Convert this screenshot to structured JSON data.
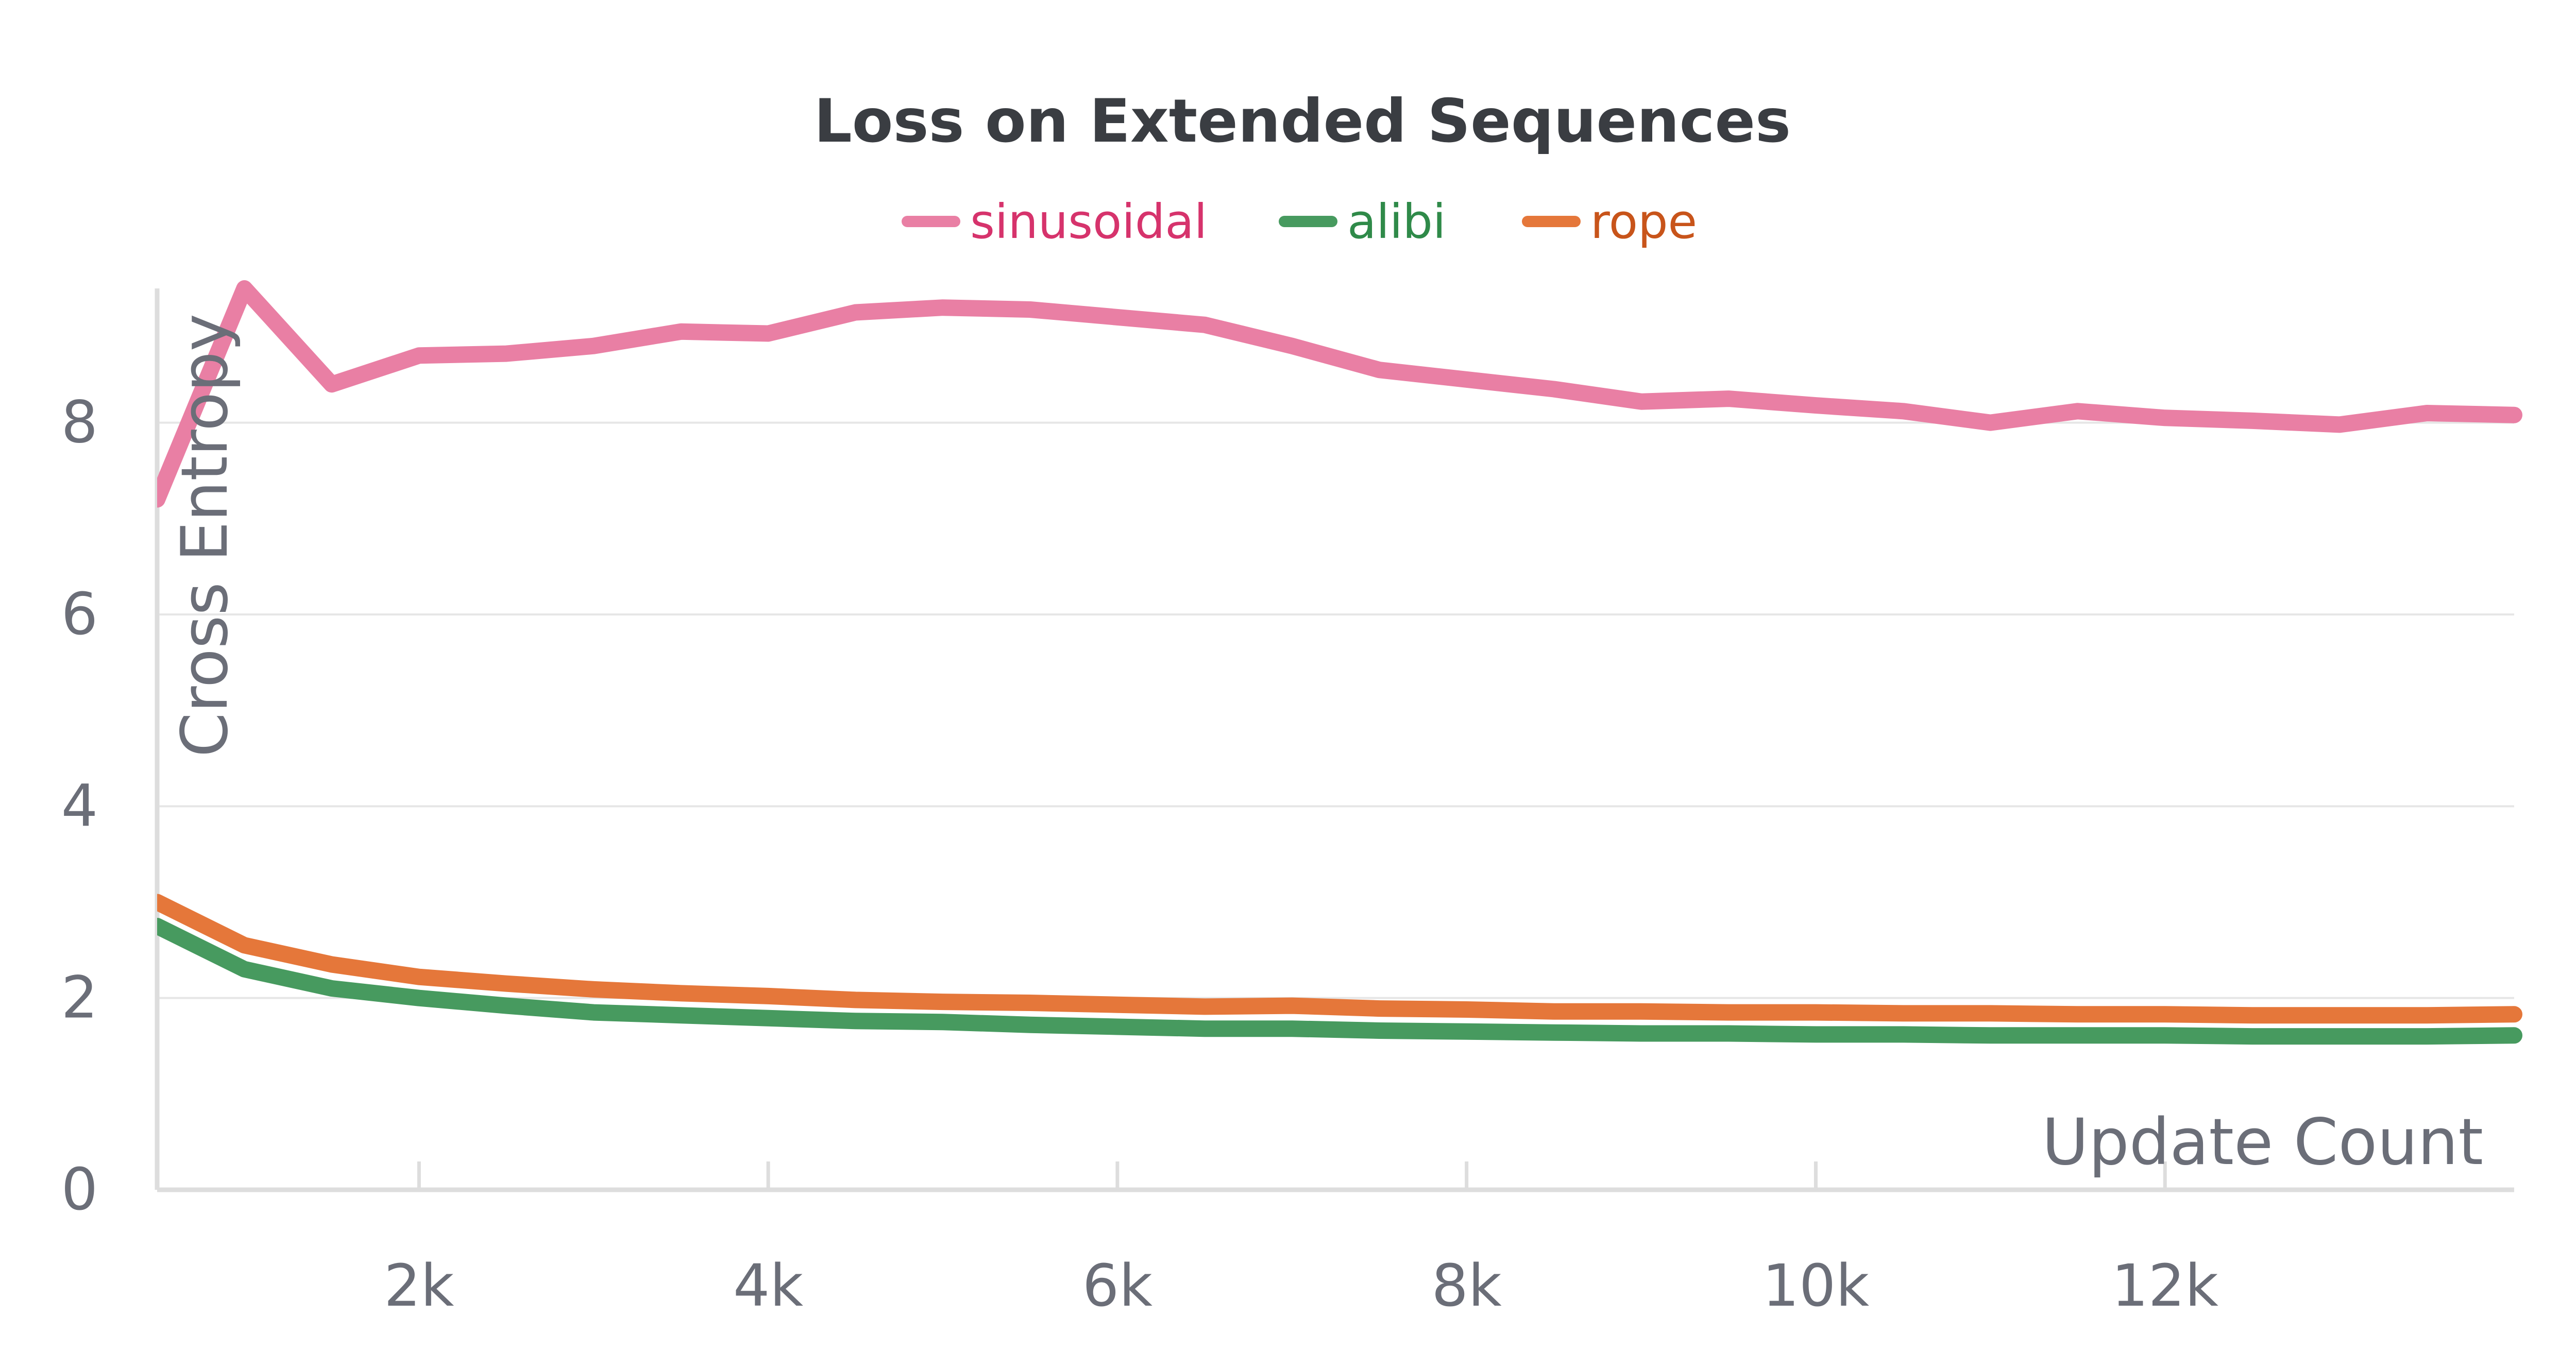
{
  "chart_data": {
    "type": "line",
    "title": "Loss on Extended Sequences",
    "xlabel": "Update Count",
    "ylabel": "Cross Entropy",
    "xlim": [
      500,
      14000
    ],
    "ylim": [
      0,
      9.4
    ],
    "xticks": [
      2000,
      4000,
      6000,
      8000,
      10000,
      12000
    ],
    "xtick_labels": [
      "2k",
      "4k",
      "6k",
      "8k",
      "10k",
      "12k"
    ],
    "yticks": [
      0,
      2,
      4,
      6,
      8
    ],
    "ytick_labels": [
      "0",
      "2",
      "4",
      "6",
      "8"
    ],
    "grid": true,
    "legend_position": "top-center",
    "x": [
      500,
      1000,
      1500,
      2000,
      2500,
      3000,
      3500,
      4000,
      4500,
      5000,
      5500,
      6000,
      6500,
      7000,
      7500,
      8000,
      8500,
      9000,
      9500,
      10000,
      10500,
      11000,
      11500,
      12000,
      12500,
      13000,
      13500,
      14000
    ],
    "series": [
      {
        "name": "sinusoidal",
        "color": "#e97fa4",
        "label_color": "#d6336c",
        "values": [
          7.2,
          9.4,
          8.4,
          8.7,
          8.72,
          8.8,
          8.95,
          8.93,
          9.15,
          9.2,
          9.18,
          9.1,
          9.02,
          8.8,
          8.55,
          8.45,
          8.35,
          8.22,
          8.25,
          8.18,
          8.12,
          8.0,
          8.12,
          8.05,
          8.02,
          7.98,
          8.1,
          8.08
        ]
      },
      {
        "name": "alibi",
        "color": "#479a5f",
        "label_color": "#2f8a49",
        "values": [
          2.75,
          2.3,
          2.1,
          2.0,
          1.92,
          1.85,
          1.82,
          1.79,
          1.76,
          1.75,
          1.72,
          1.7,
          1.68,
          1.68,
          1.66,
          1.65,
          1.64,
          1.63,
          1.63,
          1.62,
          1.62,
          1.61,
          1.61,
          1.61,
          1.6,
          1.6,
          1.6,
          1.61
        ]
      },
      {
        "name": "rope",
        "color": "#e5773a",
        "label_color": "#c8541a",
        "values": [
          3.0,
          2.55,
          2.35,
          2.22,
          2.15,
          2.09,
          2.05,
          2.02,
          1.98,
          1.96,
          1.95,
          1.93,
          1.91,
          1.92,
          1.89,
          1.88,
          1.86,
          1.86,
          1.85,
          1.85,
          1.84,
          1.84,
          1.83,
          1.83,
          1.82,
          1.82,
          1.82,
          1.83
        ]
      }
    ]
  }
}
